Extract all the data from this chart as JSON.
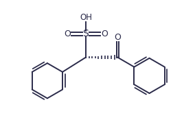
{
  "bg_color": "#ffffff",
  "line_color": "#2b2b4a",
  "line_width": 1.4,
  "fig_width": 2.84,
  "fig_height": 1.72,
  "dpi": 100,
  "xlim": [
    0,
    10
  ],
  "ylim": [
    0,
    7
  ]
}
